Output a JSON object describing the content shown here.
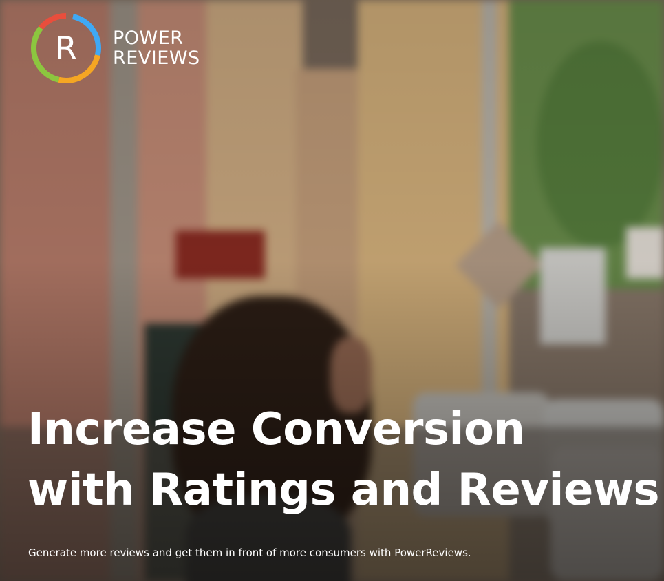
{
  "brand": {
    "logo_letter": "R",
    "name_line1": "POWER",
    "name_line2": "REVIEWS",
    "ring_colors": [
      "#3fa9f5",
      "#f5a623",
      "#8cc63f",
      "#e94e3c"
    ]
  },
  "hero": {
    "headline_line1": "Increase Conversion",
    "headline_line2": "with Ratings and Reviews",
    "subtext": "Generate more reviews and get them in front of more consumers with PowerReviews."
  }
}
